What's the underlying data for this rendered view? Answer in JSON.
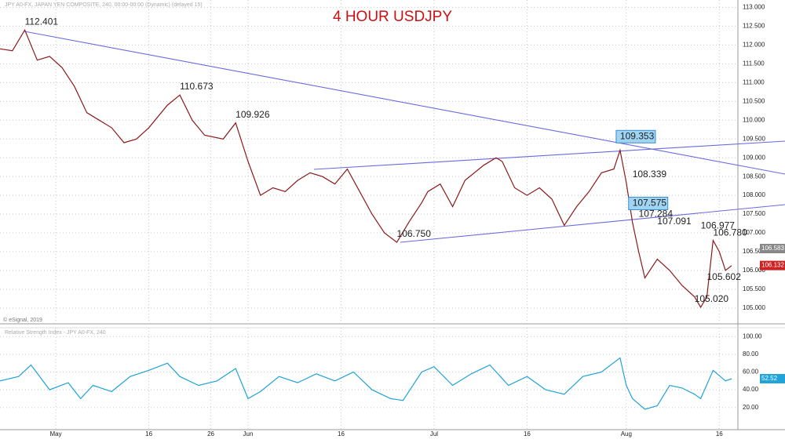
{
  "chart_data": [
    {
      "type": "line",
      "title": "4 HOUR USDJPY",
      "subtitle": "JPY A0-FX, JAPAN YEN COMPOSITE, 240, 00:00-00:00 (Dynamic) (delayed 15)",
      "credit": "© eSignal, 2019",
      "xlim": [
        0,
        119
      ],
      "ylim": [
        104.6,
        113.2
      ],
      "grid": true,
      "xticks": [
        {
          "value": 9,
          "label": "May"
        },
        {
          "value": 24,
          "label": "16"
        },
        {
          "value": 34,
          "label": "26"
        },
        {
          "value": 40,
          "label": "Jun"
        },
        {
          "value": 55,
          "label": "16"
        },
        {
          "value": 70,
          "label": "Jul"
        },
        {
          "value": 85,
          "label": "16"
        },
        {
          "value": 101,
          "label": "Aug"
        },
        {
          "value": 116,
          "label": "16"
        }
      ],
      "yticks": [
        {
          "value": 105,
          "label": "105.000"
        },
        {
          "value": 105.5,
          "label": "105.500"
        },
        {
          "value": 106,
          "label": "106.000"
        },
        {
          "value": 106.5,
          "label": "106.500"
        },
        {
          "value": 107,
          "label": "107.000"
        },
        {
          "value": 107.5,
          "label": "107.500"
        },
        {
          "value": 108,
          "label": "108.000"
        },
        {
          "value": 108.5,
          "label": "108.500"
        },
        {
          "value": 109,
          "label": "109.000"
        },
        {
          "value": 109.5,
          "label": "109.500"
        },
        {
          "value": 110,
          "label": "110.000"
        },
        {
          "value": 110.5,
          "label": "110.500"
        },
        {
          "value": 111,
          "label": "111.000"
        },
        {
          "value": 111.5,
          "label": "111.500"
        },
        {
          "value": 112,
          "label": "112.000"
        },
        {
          "value": 112.5,
          "label": "112.500"
        },
        {
          "value": 113,
          "label": "113.000"
        }
      ],
      "x": [
        0,
        2,
        4,
        6,
        8,
        10,
        12,
        14,
        16,
        18,
        20,
        22,
        24,
        27,
        29,
        31,
        33,
        36,
        38,
        40,
        42,
        44,
        46,
        48,
        50,
        52,
        54,
        56,
        58,
        60,
        62,
        64,
        66,
        68,
        69,
        71,
        73,
        75,
        78,
        80,
        81,
        83,
        85,
        87,
        89,
        91,
        93,
        95,
        97,
        99,
        100,
        101,
        102,
        103,
        104,
        106,
        108,
        110,
        112,
        113,
        114,
        115,
        116,
        117,
        118
      ],
      "series": [
        {
          "name": "JPY A0-FX",
          "color": "#8b1a1a",
          "values": [
            111.9,
            111.85,
            112.4,
            111.6,
            111.7,
            111.4,
            110.9,
            110.2,
            110.0,
            109.8,
            109.4,
            109.5,
            109.8,
            110.4,
            110.67,
            110.0,
            109.6,
            109.5,
            109.93,
            108.9,
            108.0,
            108.2,
            108.1,
            108.4,
            108.6,
            108.5,
            108.3,
            108.7,
            108.1,
            107.5,
            107.0,
            106.75,
            107.3,
            107.8,
            108.1,
            108.3,
            107.7,
            108.4,
            108.8,
            109.0,
            108.9,
            108.2,
            108.0,
            108.2,
            107.9,
            107.2,
            107.7,
            108.1,
            108.6,
            108.7,
            109.2,
            108.34,
            107.28,
            106.5,
            105.8,
            106.3,
            106.0,
            105.6,
            105.3,
            105.02,
            105.3,
            106.8,
            106.5,
            106.0,
            106.13
          ]
        }
      ],
      "annotations": [
        {
          "text": "112.401",
          "x": 4,
          "y": 112.401
        },
        {
          "text": "110.673",
          "x": 29,
          "y": 110.673
        },
        {
          "text": "109.926",
          "x": 38,
          "y": 109.926
        },
        {
          "text": "109.353",
          "x": 100,
          "y": 109.353,
          "boxed": true
        },
        {
          "text": "108.339",
          "x": 102,
          "y": 108.339
        },
        {
          "text": "107.575",
          "x": 102,
          "y": 107.575,
          "boxed": true
        },
        {
          "text": "107.284",
          "x": 103,
          "y": 107.284
        },
        {
          "text": "107.091",
          "x": 106,
          "y": 107.091
        },
        {
          "text": "106.750",
          "x": 64,
          "y": 106.75
        },
        {
          "text": "106.977",
          "x": 113,
          "y": 106.977
        },
        {
          "text": "106.780",
          "x": 115,
          "y": 106.78
        },
        {
          "text": "105.602",
          "x": 114,
          "y": 105.602
        },
        {
          "text": "105.020",
          "x": 112,
          "y": 105.02
        }
      ],
      "price_tags": [
        {
          "text": "106.583",
          "y": 106.583,
          "color": "#888888"
        },
        {
          "text": "106.132",
          "y": 106.132,
          "color": "#cc2222"
        }
      ]
    },
    {
      "type": "line",
      "title": "Relative Strength Index - JPY A0-FX, 240",
      "xlim": [
        0,
        119
      ],
      "ylim": [
        -5,
        110
      ],
      "grid": true,
      "yticks": [
        {
          "value": 20,
          "label": "20.00"
        },
        {
          "value": 40,
          "label": "40.00"
        },
        {
          "value": 60,
          "label": "60.00"
        },
        {
          "value": 80,
          "label": "80.00"
        },
        {
          "value": 100,
          "label": "100.00"
        }
      ],
      "x": [
        0,
        3,
        5,
        8,
        11,
        13,
        15,
        18,
        21,
        24,
        27,
        29,
        32,
        35,
        38,
        40,
        42,
        45,
        48,
        51,
        54,
        57,
        60,
        63,
        65,
        68,
        70,
        73,
        76,
        79,
        82,
        85,
        88,
        91,
        94,
        97,
        100,
        101,
        102,
        104,
        106,
        108,
        110,
        112,
        113,
        115,
        117,
        118
      ],
      "series": [
        {
          "name": "RSI",
          "color": "#1fa3d8",
          "values": [
            50,
            55,
            68,
            40,
            48,
            30,
            45,
            38,
            55,
            62,
            70,
            55,
            45,
            50,
            64,
            30,
            38,
            55,
            48,
            58,
            50,
            60,
            40,
            30,
            28,
            60,
            66,
            45,
            58,
            68,
            45,
            55,
            40,
            35,
            55,
            60,
            76,
            45,
            30,
            18,
            22,
            45,
            42,
            35,
            30,
            62,
            50,
            52.52
          ]
        }
      ],
      "price_tags": [
        {
          "text": "52.52",
          "y": 52.52,
          "color": "#1fa3d8"
        }
      ]
    }
  ]
}
